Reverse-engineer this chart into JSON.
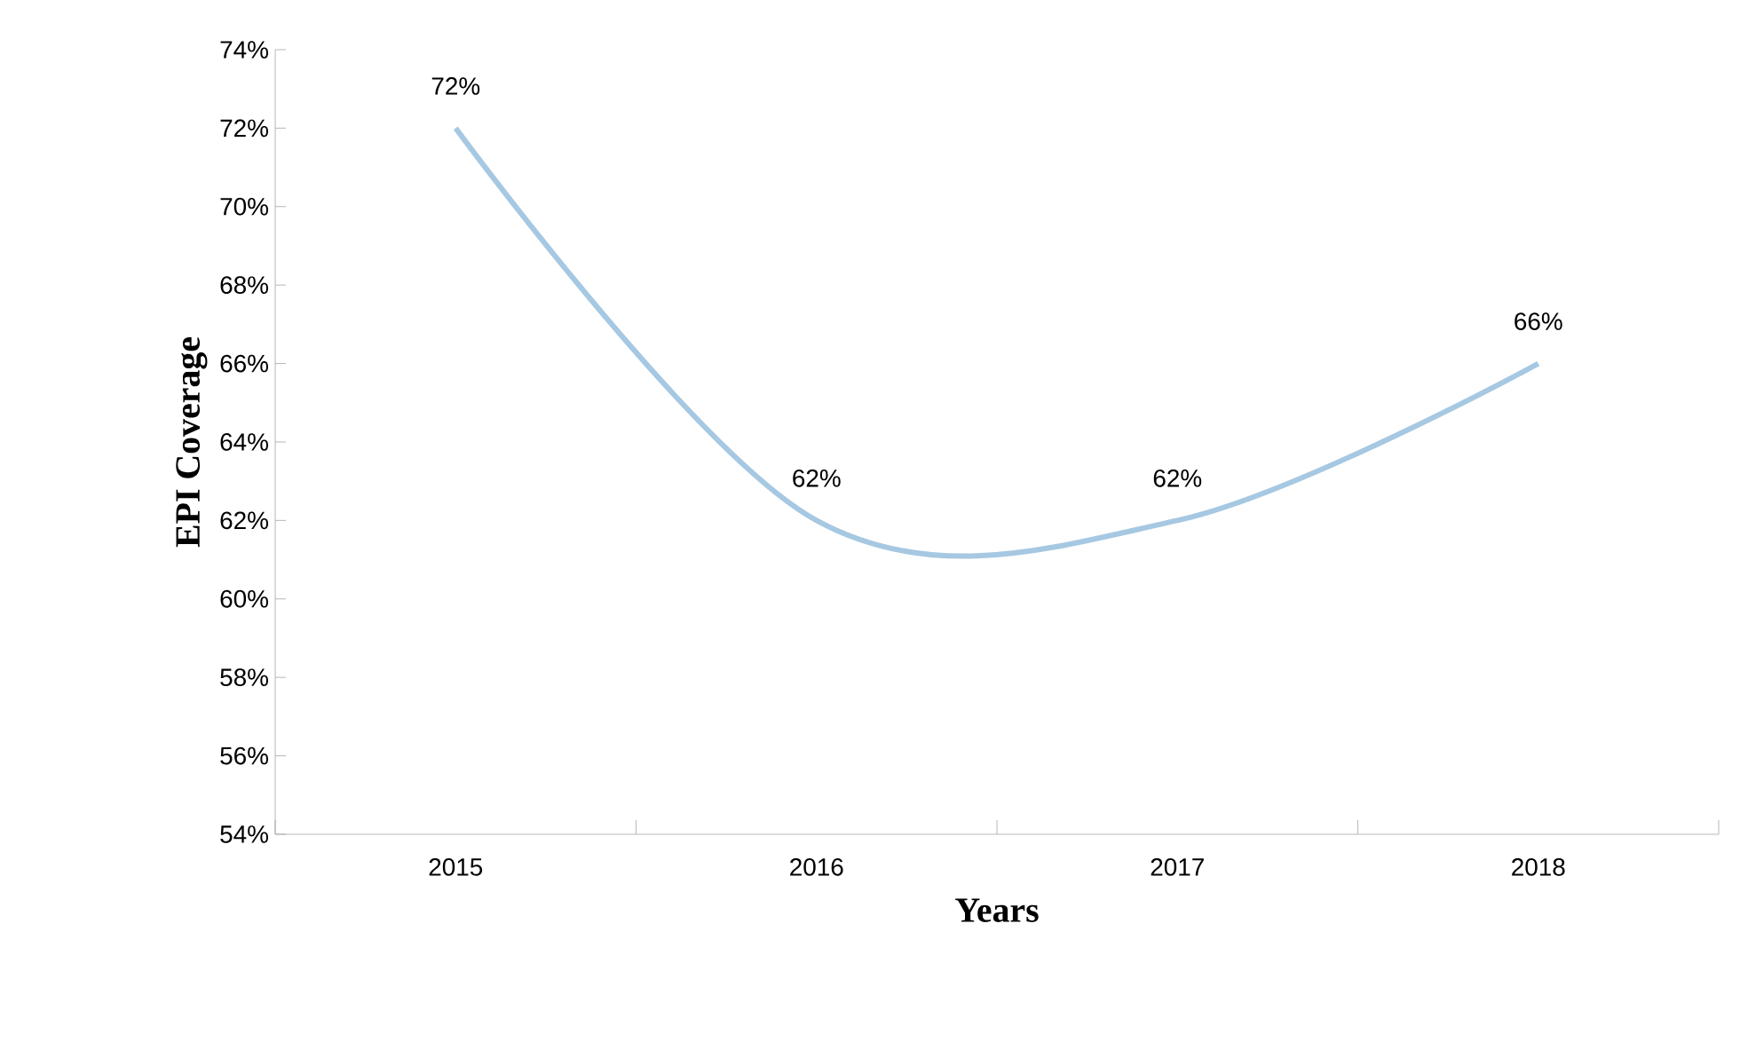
{
  "chart_data": {
    "type": "line",
    "xlabel": "Years",
    "ylabel": "EPI Coverage",
    "categories": [
      "2015",
      "2016",
      "2017",
      "2018"
    ],
    "series": [
      {
        "color": "#a6c8e2",
        "values": [
          72,
          62,
          62,
          66
        ],
        "value_labels": [
          "72%",
          "62%",
          "62%",
          "66%"
        ]
      }
    ],
    "ylim": [
      54,
      74
    ],
    "yticks": [
      {
        "value": 54,
        "label": "54%"
      },
      {
        "value": 56,
        "label": "56%"
      },
      {
        "value": 58,
        "label": "58%"
      },
      {
        "value": 60,
        "label": "60%"
      },
      {
        "value": 62,
        "label": "62%"
      },
      {
        "value": 64,
        "label": "64%"
      },
      {
        "value": 66,
        "label": "66%"
      },
      {
        "value": 68,
        "label": "68%"
      },
      {
        "value": 70,
        "label": "70%"
      },
      {
        "value": 72,
        "label": "72%"
      },
      {
        "value": 74,
        "label": "74%"
      }
    ]
  }
}
